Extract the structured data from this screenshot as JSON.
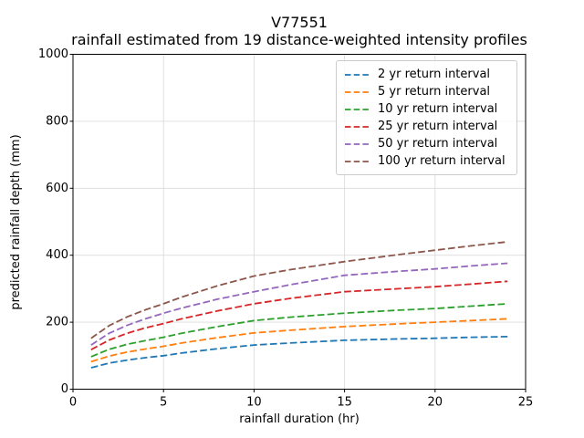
{
  "chart_data": {
    "type": "line",
    "title": "V77551",
    "subtitle": "rainfall estimated from 19 distance-weighted intensity profiles",
    "xlabel": "rainfall duration (hr)",
    "ylabel": "predicted rainfall depth (mm)",
    "xlim": [
      0,
      25
    ],
    "ylim": [
      0,
      1000
    ],
    "xticks": [
      0,
      5,
      10,
      15,
      20,
      25
    ],
    "yticks": [
      0,
      200,
      400,
      600,
      800,
      1000
    ],
    "grid": true,
    "grid_color": "#dcdcdc",
    "line_style": "dashed",
    "legend_position": "upper right",
    "x": [
      1,
      2,
      3,
      4,
      5,
      6,
      8,
      10,
      12,
      15,
      18,
      20,
      22,
      24
    ],
    "series": [
      {
        "name": "2 yr return interval",
        "color": "#1f77b4",
        "values": [
          64,
          78,
          87,
          94,
          100,
          108,
          121,
          132,
          138,
          146,
          150,
          152,
          155,
          157
        ]
      },
      {
        "name": "5 yr return interval",
        "color": "#ff7f0e",
        "values": [
          82,
          99,
          111,
          120,
          128,
          138,
          154,
          168,
          176,
          187,
          195,
          200,
          205,
          210
        ]
      },
      {
        "name": "10 yr return interval",
        "color": "#2ca02c",
        "values": [
          97,
          119,
          134,
          145,
          155,
          167,
          187,
          205,
          215,
          227,
          236,
          241,
          248,
          255
        ]
      },
      {
        "name": "25 yr return interval",
        "color": "#d62728",
        "values": [
          118,
          147,
          167,
          183,
          196,
          210,
          234,
          255,
          271,
          291,
          300,
          306,
          314,
          322
        ]
      },
      {
        "name": "50 yr return interval",
        "color": "#9467bd",
        "values": [
          132,
          167,
          191,
          210,
          227,
          242,
          269,
          291,
          312,
          340,
          352,
          359,
          368,
          376
        ]
      },
      {
        "name": "100 yr return interval",
        "color": "#8c564b",
        "values": [
          152,
          190,
          216,
          237,
          255,
          275,
          309,
          338,
          357,
          381,
          402,
          415,
          428,
          440
        ]
      }
    ]
  }
}
